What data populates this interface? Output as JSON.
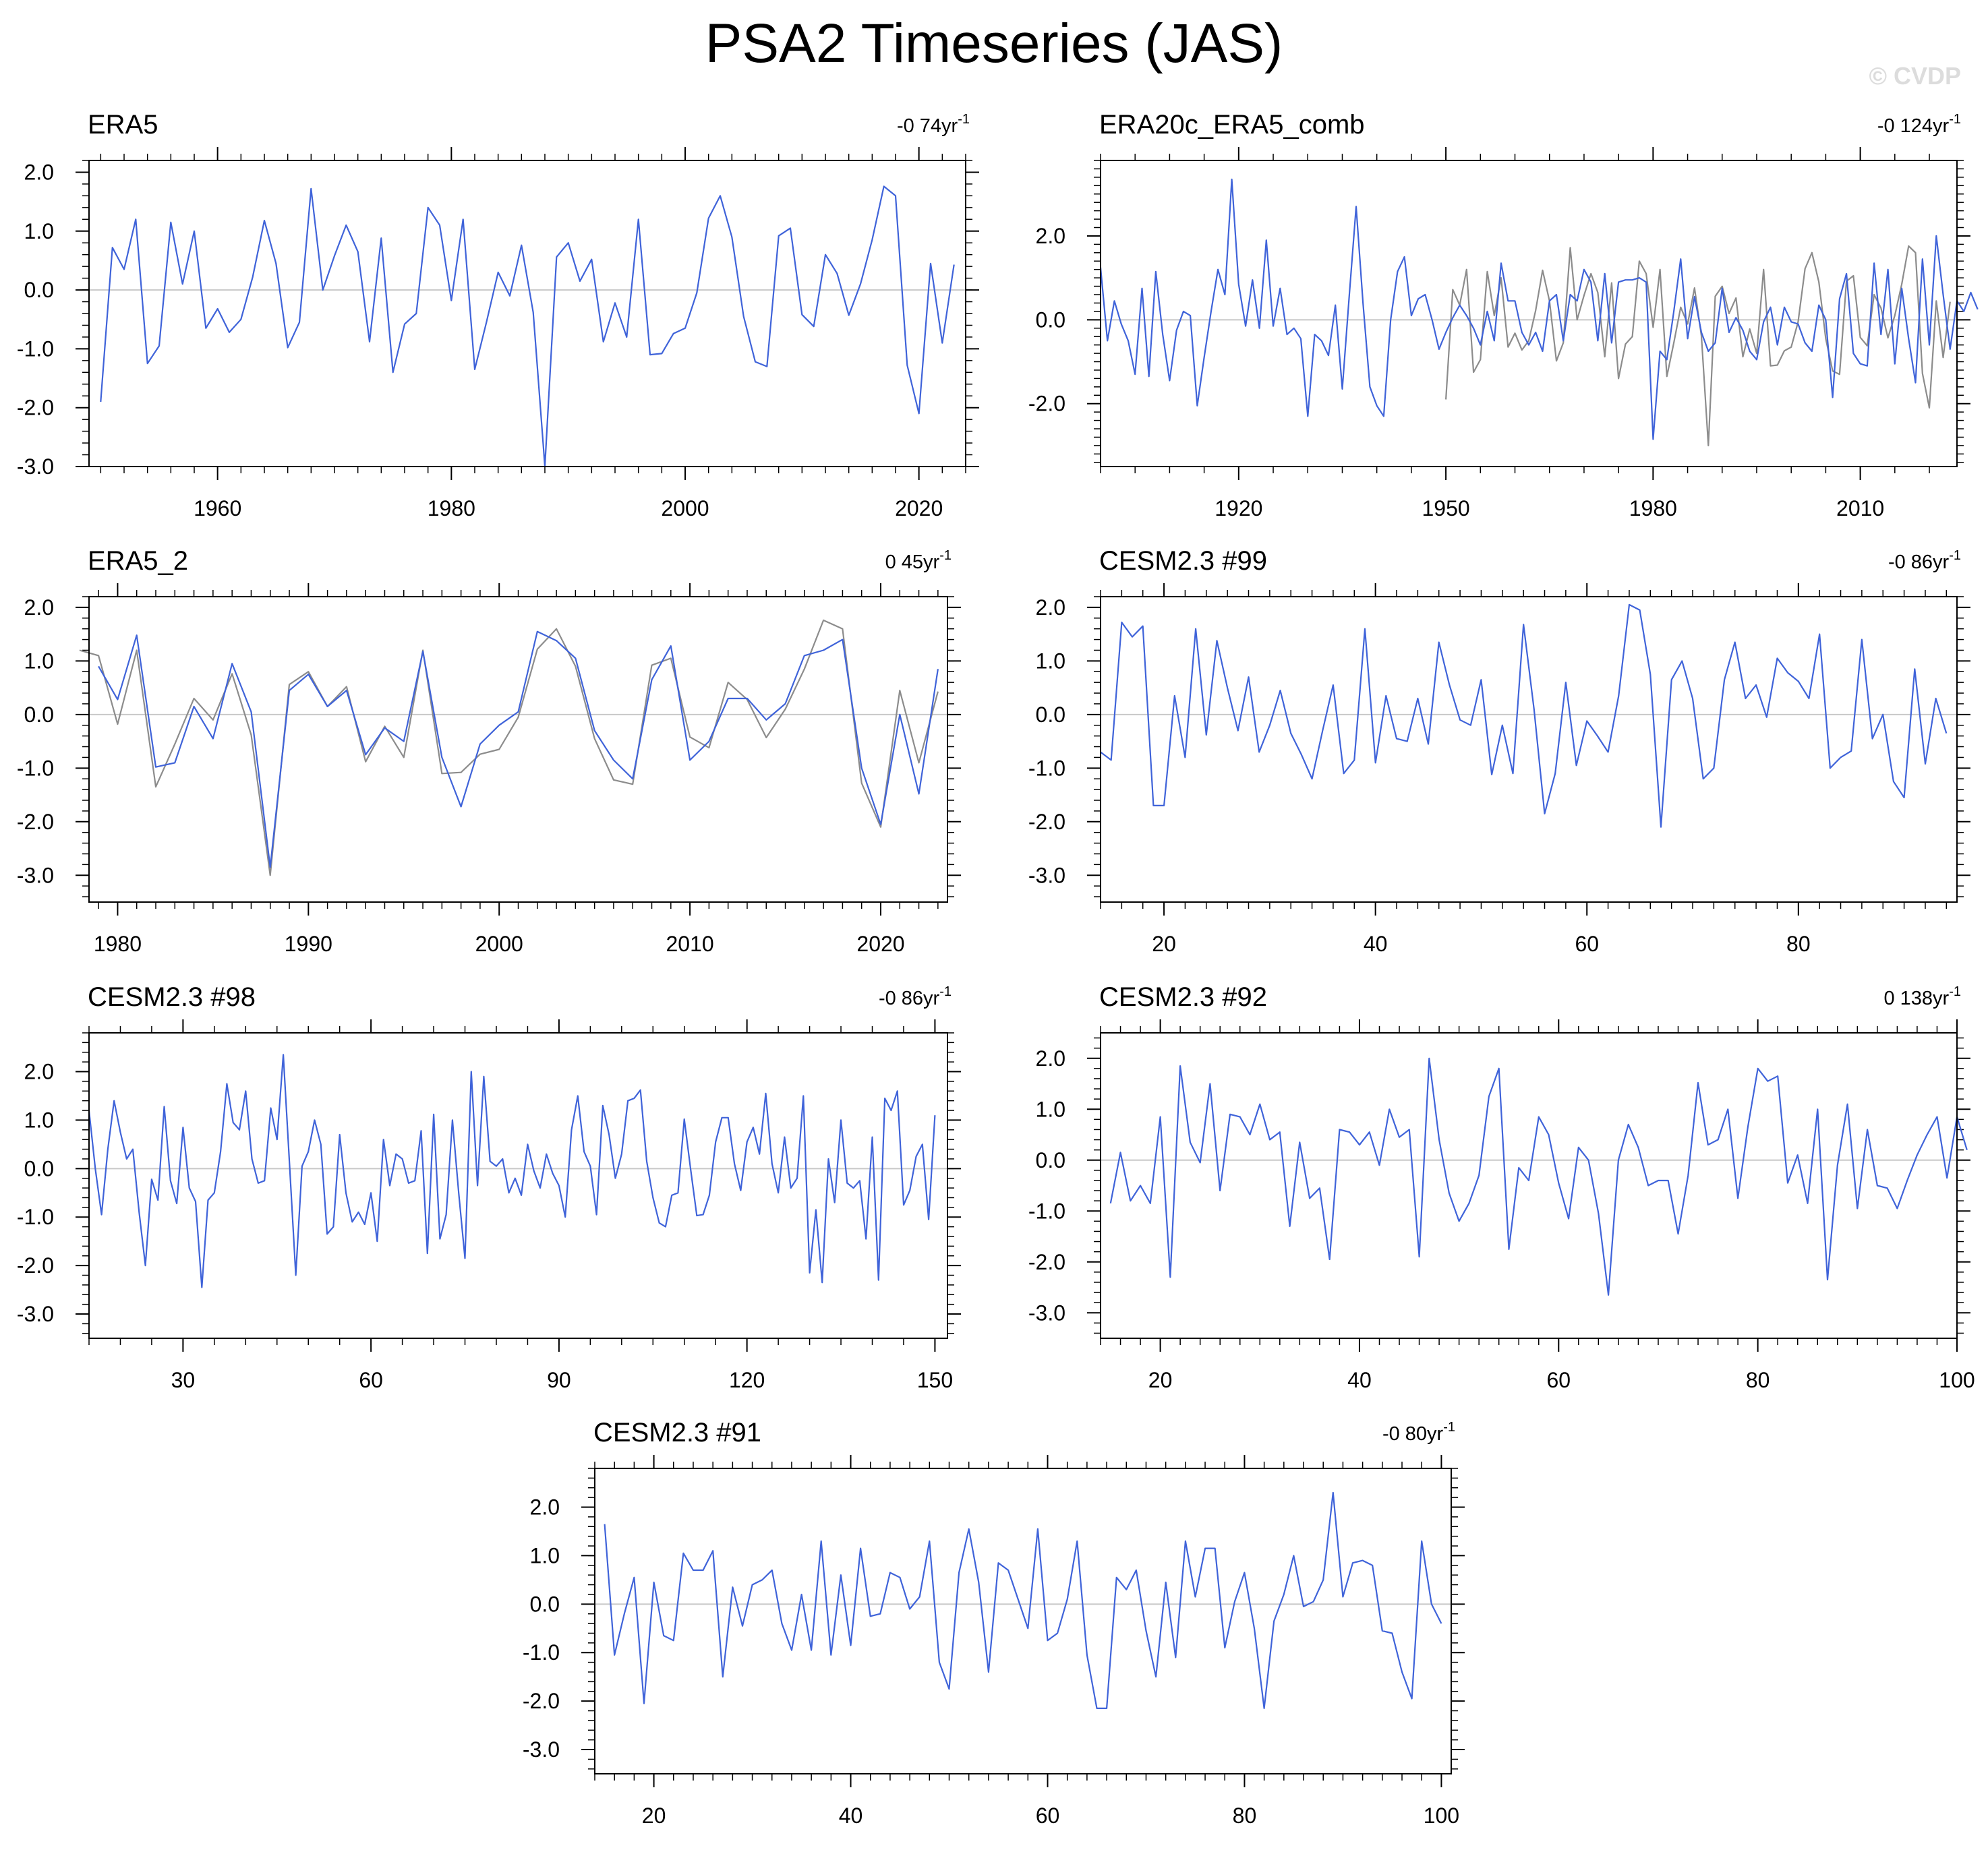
{
  "title": "PSA2 Timeseries (JAS)",
  "watermark": "© CVDP",
  "style": {
    "blue": "#3f63d9",
    "gray": "#8c8c8c",
    "zeroline": "#c8c8c8"
  },
  "chart_data": [
    {
      "type": "line",
      "title": "ERA5",
      "trend": "-0 74yr",
      "trend_unit": "-1",
      "xlim": [
        1949,
        2024
      ],
      "ylim": [
        -3.0,
        2.2
      ],
      "xticks": [
        1960,
        1980,
        2000,
        2020
      ],
      "yticks": [
        -3.0,
        -2.0,
        -1.0,
        0.0,
        1.0,
        2.0
      ],
      "series": [
        {
          "color": "blue",
          "x0": 1950,
          "values": [
            -1.9,
            0.72,
            0.35,
            1.2,
            -1.25,
            -0.95,
            1.15,
            0.1,
            1.0,
            -0.65,
            -0.32,
            -0.72,
            -0.5,
            0.22,
            1.18,
            0.45,
            -0.98,
            -0.55,
            1.72,
            0.0,
            0.58,
            1.1,
            0.65,
            -0.88,
            0.88,
            -1.4,
            -0.58,
            -0.4,
            1.4,
            1.1,
            -0.18,
            1.2,
            -1.35,
            -0.55,
            0.3,
            -0.1,
            0.76,
            -0.38,
            -3.0,
            0.56,
            0.8,
            0.15,
            0.52,
            -0.88,
            -0.22,
            -0.8,
            1.2,
            -1.1,
            -1.08,
            -0.74,
            -0.65,
            -0.05,
            1.22,
            1.6,
            0.9,
            -0.45,
            -1.22,
            -1.3,
            0.92,
            1.05,
            -0.42,
            -0.62,
            0.6,
            0.28,
            -0.43,
            0.1,
            0.85,
            1.76,
            1.6,
            -1.28,
            -2.1,
            0.45,
            -0.9,
            0.43
          ]
        }
      ]
    },
    {
      "type": "line",
      "title": "ERA20c_ERA5_comb",
      "trend": "-0 124yr",
      "trend_unit": "-1",
      "xlim": [
        1900,
        2024
      ],
      "ylim": [
        -3.5,
        3.8
      ],
      "xticks": [
        1920,
        1950,
        1980,
        2010
      ],
      "yticks": [
        -2.0,
        0.0,
        2.0
      ],
      "series": [
        {
          "color": "gray",
          "x0": 1950,
          "values": [
            -1.9,
            0.72,
            0.35,
            1.2,
            -1.25,
            -0.95,
            1.15,
            0.1,
            1.0,
            -0.65,
            -0.32,
            -0.72,
            -0.5,
            0.22,
            1.18,
            0.45,
            -0.98,
            -0.55,
            1.72,
            0.0,
            0.58,
            1.1,
            0.65,
            -0.88,
            0.88,
            -1.4,
            -0.58,
            -0.4,
            1.4,
            1.1,
            -0.18,
            1.2,
            -1.35,
            -0.55,
            0.3,
            -0.1,
            0.76,
            -0.38,
            -3.0,
            0.56,
            0.8,
            0.15,
            0.52,
            -0.88,
            -0.22,
            -0.8,
            1.2,
            -1.1,
            -1.08,
            -0.74,
            -0.65,
            -0.05,
            1.22,
            1.6,
            0.9,
            -0.45,
            -1.22,
            -1.3,
            0.92,
            1.05,
            -0.42,
            -0.62,
            0.6,
            0.28,
            -0.43,
            0.1,
            0.85,
            1.76,
            1.6,
            -1.28,
            -2.1,
            0.45,
            -0.9,
            0.43
          ]
        },
        {
          "color": "blue",
          "x0": 1900,
          "values": [
            1.25,
            -0.5,
            0.45,
            -0.1,
            -0.5,
            -1.3,
            0.75,
            -1.35,
            1.15,
            -0.35,
            -1.45,
            -0.25,
            0.2,
            0.1,
            -2.05,
            -0.9,
            0.2,
            1.2,
            0.6,
            3.35,
            0.85,
            -0.15,
            0.95,
            -0.2,
            1.9,
            -0.15,
            0.75,
            -0.35,
            -0.2,
            -0.45,
            -2.3,
            -0.35,
            -0.5,
            -0.85,
            0.35,
            -1.65,
            0.55,
            2.7,
            0.4,
            -1.6,
            -2.05,
            -2.3,
            0.0,
            1.15,
            1.5,
            0.1,
            0.5,
            0.6,
            0.0,
            -0.7,
            -0.3,
            0.05,
            0.35,
            0.1,
            -0.2,
            -0.6,
            0.2,
            -0.5,
            1.35,
            0.45,
            0.45,
            -0.3,
            -0.6,
            -0.3,
            -0.75,
            0.45,
            0.6,
            -0.5,
            0.6,
            0.45,
            1.2,
            0.9,
            -0.5,
            1.1,
            -0.55,
            0.9,
            0.95,
            0.95,
            1.0,
            0.9,
            -2.85,
            -0.75,
            -0.95,
            0.2,
            1.45,
            -0.45,
            0.55,
            -0.3,
            -0.75,
            -0.55,
            0.75,
            -0.3,
            0.05,
            -0.25,
            -0.75,
            -0.95,
            -0.05,
            0.3,
            -0.6,
            0.3,
            -0.05,
            -0.1,
            -0.55,
            -0.75,
            0.35,
            0.0,
            -1.85,
            0.5,
            1.1,
            -0.8,
            -1.05,
            -1.1,
            1.35,
            -0.35,
            1.2,
            -1.05,
            0.75,
            -0.45,
            -1.5,
            1.45,
            -0.6,
            2.0,
            0.6,
            -0.7,
            0.45,
            0.2,
            0.65,
            0.25
          ]
        }
      ]
    },
    {
      "type": "line",
      "title": "ERA5_2",
      "trend": "0 45yr",
      "trend_unit": "-1",
      "xlim": [
        1978.5,
        2023.5
      ],
      "ylim": [
        -3.5,
        2.2
      ],
      "xticks": [
        1980,
        1990,
        2000,
        2010,
        2020
      ],
      "yticks": [
        -3.0,
        -2.0,
        -1.0,
        0.0,
        1.0,
        2.0
      ],
      "series": [
        {
          "color": "gray",
          "x0": 1978,
          "values": [
            1.2,
            1.1,
            -0.18,
            1.2,
            -1.35,
            -0.55,
            0.3,
            -0.1,
            0.76,
            -0.38,
            -3.0,
            0.56,
            0.8,
            0.15,
            0.52,
            -0.88,
            -0.22,
            -0.8,
            1.2,
            -1.1,
            -1.08,
            -0.74,
            -0.65,
            -0.05,
            1.22,
            1.6,
            0.9,
            -0.45,
            -1.22,
            -1.3,
            0.92,
            1.05,
            -0.42,
            -0.62,
            0.6,
            0.28,
            -0.43,
            0.1,
            0.85,
            1.76,
            1.6,
            -1.28,
            -2.1,
            0.45,
            -0.9,
            0.43
          ]
        },
        {
          "color": "blue",
          "x0": 1979,
          "values": [
            0.9,
            0.28,
            1.48,
            -0.98,
            -0.9,
            0.15,
            -0.45,
            0.95,
            0.05,
            -2.85,
            0.45,
            0.75,
            0.15,
            0.45,
            -0.75,
            -0.25,
            -0.5,
            1.18,
            -0.8,
            -1.72,
            -0.55,
            -0.2,
            0.05,
            1.55,
            1.38,
            1.05,
            -0.3,
            -0.85,
            -1.2,
            0.65,
            1.28,
            -0.85,
            -0.5,
            0.3,
            0.3,
            -0.1,
            0.2,
            1.1,
            1.2,
            1.4,
            -1.0,
            -2.05,
            0.0,
            -1.48,
            0.85
          ]
        }
      ]
    },
    {
      "type": "line",
      "title": "CESM2.3 #99",
      "trend": "-0 86yr",
      "trend_unit": "-1",
      "xlim": [
        14,
        95
      ],
      "ylim": [
        -3.5,
        2.2
      ],
      "xticks": [
        20,
        40,
        60,
        80
      ],
      "yticks": [
        -3.0,
        -2.0,
        -1.0,
        0.0,
        1.0,
        2.0
      ],
      "series": [
        {
          "color": "blue",
          "x0": 14,
          "values": [
            -0.7,
            -0.85,
            1.72,
            1.45,
            1.65,
            -1.7,
            -1.7,
            0.35,
            -0.8,
            1.6,
            -0.38,
            1.38,
            0.5,
            -0.3,
            0.7,
            -0.7,
            -0.2,
            0.45,
            -0.35,
            -0.75,
            -1.2,
            -0.3,
            0.55,
            -1.1,
            -0.85,
            1.6,
            -0.9,
            0.35,
            -0.45,
            -0.5,
            0.3,
            -0.55,
            1.35,
            0.55,
            -0.1,
            -0.2,
            0.65,
            -1.12,
            -0.2,
            -1.1,
            1.68,
            0.1,
            -1.85,
            -1.1,
            0.6,
            -0.95,
            -0.12,
            -0.4,
            -0.7,
            0.35,
            2.05,
            1.95,
            0.75,
            -2.1,
            0.65,
            1.0,
            0.3,
            -1.2,
            -1.0,
            0.65,
            1.35,
            0.3,
            0.55,
            -0.05,
            1.05,
            0.78,
            0.62,
            0.3,
            1.5,
            -1.0,
            -0.8,
            -0.68,
            1.4,
            -0.45,
            0.0,
            -1.25,
            -1.55,
            0.85,
            -0.92,
            0.3,
            -0.35
          ]
        }
      ]
    },
    {
      "type": "line",
      "title": "CESM2.3 #98",
      "trend": "-0 86yr",
      "trend_unit": "-1",
      "xlim": [
        15,
        152
      ],
      "ylim": [
        -3.5,
        2.8
      ],
      "xticks": [
        30,
        60,
        90,
        120,
        150
      ],
      "yticks": [
        -3.0,
        -2.0,
        -1.0,
        0.0,
        1.0,
        2.0
      ],
      "series": [
        {
          "color": "blue",
          "x0": 15,
          "values": [
            1.2,
            0.0,
            -0.95,
            0.4,
            1.4,
            0.75,
            0.2,
            0.4,
            -0.9,
            -2.0,
            -0.22,
            -0.65,
            1.28,
            -0.25,
            -0.72,
            0.85,
            -0.4,
            -0.68,
            -2.45,
            -0.65,
            -0.5,
            0.35,
            1.75,
            0.95,
            0.8,
            1.6,
            0.2,
            -0.3,
            -0.25,
            1.25,
            0.6,
            2.35,
            0.1,
            -2.2,
            0.05,
            0.35,
            1.0,
            0.5,
            -1.35,
            -1.2,
            0.7,
            -0.5,
            -1.1,
            -0.9,
            -1.15,
            -0.5,
            -1.5,
            0.6,
            -0.35,
            0.3,
            0.2,
            -0.3,
            -0.25,
            0.78,
            -1.75,
            1.12,
            -1.45,
            -0.95,
            1.0,
            -0.5,
            -1.85,
            2.0,
            -0.35,
            1.9,
            0.15,
            0.05,
            0.2,
            -0.5,
            -0.2,
            -0.55,
            0.5,
            -0.05,
            -0.4,
            0.3,
            -0.1,
            -0.35,
            -1.0,
            0.8,
            1.5,
            0.35,
            0.05,
            -0.95,
            1.3,
            0.7,
            -0.2,
            0.3,
            1.4,
            1.45,
            1.62,
            0.15,
            -0.6,
            -1.12,
            -1.2,
            -0.55,
            -0.5,
            1.02,
            0.0,
            -0.97,
            -0.95,
            -0.55,
            0.55,
            1.05,
            1.05,
            0.1,
            -0.45,
            0.55,
            0.85,
            0.3,
            1.55,
            0.1,
            -0.5,
            0.65,
            -0.4,
            -0.2,
            1.5,
            -2.15,
            -0.85,
            -2.35,
            0.2,
            -0.7,
            1.0,
            -0.3,
            -0.4,
            -0.25,
            -1.45,
            0.65,
            -2.3,
            1.45,
            1.2,
            1.6,
            -0.75,
            -0.45,
            0.25,
            0.5,
            -1.05,
            1.1
          ]
        }
      ]
    },
    {
      "type": "line",
      "title": "CESM2.3 #92",
      "trend": "0 138yr",
      "trend_unit": "-1",
      "xlim": [
        14,
        100
      ],
      "ylim": [
        -3.5,
        2.5
      ],
      "xticks": [
        20,
        40,
        60,
        80,
        100
      ],
      "yticks": [
        -3.0,
        -2.0,
        -1.0,
        0.0,
        1.0,
        2.0
      ],
      "series": [
        {
          "color": "blue",
          "x0": 15,
          "values": [
            -0.85,
            0.15,
            -0.8,
            -0.5,
            -0.85,
            0.85,
            -2.3,
            1.85,
            0.35,
            -0.05,
            1.5,
            -0.6,
            0.9,
            0.85,
            0.5,
            1.1,
            0.4,
            0.55,
            -1.3,
            0.35,
            -0.75,
            -0.55,
            -1.95,
            0.6,
            0.55,
            0.3,
            0.55,
            -0.1,
            1.0,
            0.45,
            0.6,
            -1.9,
            2.0,
            0.4,
            -0.65,
            -1.2,
            -0.85,
            -0.3,
            1.25,
            1.8,
            -1.75,
            -0.15,
            -0.4,
            0.85,
            0.5,
            -0.45,
            -1.15,
            0.25,
            0.0,
            -1.05,
            -2.65,
            0.0,
            0.7,
            0.25,
            -0.5,
            -0.4,
            -0.4,
            -1.45,
            -0.3,
            1.52,
            0.3,
            0.4,
            1.0,
            -0.75,
            0.65,
            1.8,
            1.55,
            1.65,
            -0.45,
            0.1,
            -0.85,
            1.0,
            -2.35,
            -0.1,
            1.1,
            -0.95,
            0.6,
            -0.5,
            -0.55,
            -0.95,
            -0.4,
            0.1,
            0.5,
            0.85,
            -0.35,
            0.85,
            0.2
          ]
        }
      ]
    },
    {
      "type": "line",
      "title": "CESM2.3 #91",
      "trend": "-0 80yr",
      "trend_unit": "-1",
      "xlim": [
        14,
        101
      ],
      "ylim": [
        -3.5,
        2.8
      ],
      "xticks": [
        20,
        40,
        60,
        80,
        100
      ],
      "yticks": [
        -3.0,
        -2.0,
        -1.0,
        0.0,
        1.0,
        2.0
      ],
      "series": [
        {
          "color": "blue",
          "x0": 15,
          "values": [
            1.65,
            -1.05,
            -0.2,
            0.55,
            -2.05,
            0.45,
            -0.65,
            -0.75,
            1.05,
            0.7,
            0.7,
            1.1,
            -1.5,
            0.35,
            -0.45,
            0.4,
            0.5,
            0.7,
            -0.4,
            -0.95,
            0.2,
            -0.95,
            1.3,
            -1.05,
            0.6,
            -0.85,
            1.15,
            -0.25,
            -0.2,
            0.65,
            0.55,
            -0.1,
            0.15,
            1.3,
            -1.2,
            -1.75,
            0.65,
            1.55,
            0.45,
            -1.4,
            0.85,
            0.7,
            0.1,
            -0.5,
            1.55,
            -0.75,
            -0.6,
            0.1,
            1.3,
            -1.05,
            -2.15,
            -2.15,
            0.55,
            0.3,
            0.7,
            -0.55,
            -1.5,
            0.45,
            -1.1,
            1.3,
            0.15,
            1.15,
            1.15,
            -0.9,
            0.05,
            0.65,
            -0.5,
            -2.15,
            -0.35,
            0.2,
            1.0,
            -0.05,
            0.05,
            0.5,
            2.3,
            0.15,
            0.85,
            0.9,
            0.8,
            -0.55,
            -0.6,
            -1.4,
            -1.95,
            1.3,
            0.0,
            -0.4
          ]
        }
      ]
    }
  ]
}
